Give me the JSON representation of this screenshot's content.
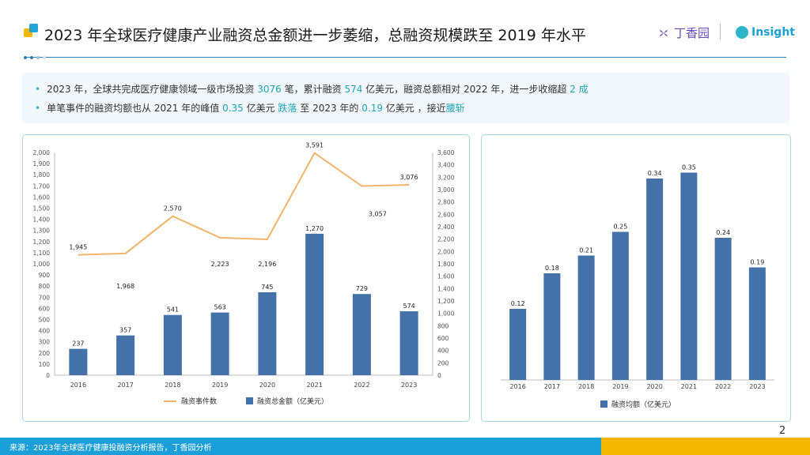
{
  "header": {
    "title": "2023 年全球医疗健康产业融资总金额进一步萎缩，总融资规模跌至 2019 年水平",
    "brand_dxy": "丁香园",
    "brand_insight": "Insight"
  },
  "summary": {
    "line1": [
      {
        "t": "2023 年，全球共完成医疗健康领域一级市场投资 ",
        "hl": false
      },
      {
        "t": "3076",
        "hl": true
      },
      {
        "t": " 笔，累计融资 ",
        "hl": false
      },
      {
        "t": "574",
        "hl": true
      },
      {
        "t": " 亿美元，融资总额相对 2022 年，进一步收缩超 ",
        "hl": false
      },
      {
        "t": "2 成",
        "hl": true
      }
    ],
    "line2": [
      {
        "t": "单笔事件的融资均额也从 2021 年的峰值 ",
        "hl": false
      },
      {
        "t": "0.35",
        "hl": true
      },
      {
        "t": " 亿美元 ",
        "hl": false
      },
      {
        "t": "跌落",
        "hl": true
      },
      {
        "t": " 至 2023 年的 ",
        "hl": false
      },
      {
        "t": "0.19",
        "hl": true
      },
      {
        "t": " 亿美元 ，接近",
        "hl": false
      },
      {
        "t": "腰斩",
        "hl": true
      }
    ]
  },
  "colors": {
    "bar": "#4472a8",
    "line": "#f2b46b",
    "accent": "#1fa7b8",
    "footer": "#1a9fd8",
    "footer_alt": "#f5b800"
  },
  "chart_data": [
    {
      "type": "bar",
      "categories": [
        "2016",
        "2017",
        "2018",
        "2019",
        "2020",
        "2021",
        "2022",
        "2023"
      ],
      "series": [
        {
          "name": "融资总金额（亿美元）",
          "type": "bar",
          "axis": "left",
          "values": [
            237,
            357,
            541,
            563,
            745,
            1270,
            729,
            574
          ],
          "labels": [
            "237",
            "357",
            "541",
            "563",
            "745",
            "1,270",
            "729",
            "574"
          ]
        },
        {
          "name": "融资事件数",
          "type": "line",
          "axis": "right",
          "values": [
            1945,
            1968,
            2570,
            2223,
            2196,
            3591,
            3057,
            3076
          ],
          "labels": [
            "1,945",
            "1,968",
            "2,570",
            "2,223",
            "2,196",
            "3,591",
            "3,057",
            "3,076"
          ]
        }
      ],
      "ylim": [
        0,
        2000
      ],
      "y_ticks": [
        "0",
        "100",
        "200",
        "300",
        "400",
        "500",
        "600",
        "700",
        "800",
        "900",
        "1,000",
        "1,100",
        "1,200",
        "1,300",
        "1,400",
        "1,500",
        "1,600",
        "1,700",
        "1,800",
        "1,900",
        "2,000"
      ],
      "y2lim": [
        0,
        3600
      ],
      "y2_ticks": [
        "0",
        "200",
        "400",
        "600",
        "800",
        "1,000",
        "1,200",
        "1,400",
        "1,600",
        "1,800",
        "2,000",
        "2,200",
        "2,400",
        "2,600",
        "2,800",
        "3,000",
        "3,200",
        "3,400",
        "3,600"
      ],
      "legend": "bottom",
      "grid": false
    },
    {
      "type": "bar",
      "categories": [
        "2016",
        "2017",
        "2018",
        "2019",
        "2020",
        "2021",
        "2022",
        "2023"
      ],
      "series": [
        {
          "name": "融资均额（亿美元）",
          "values": [
            0.12,
            0.18,
            0.21,
            0.25,
            0.34,
            0.35,
            0.24,
            0.19
          ],
          "labels": [
            "0.12",
            "0.18",
            "0.21",
            "0.25",
            "0.34",
            "0.35",
            "0.24",
            "0.19"
          ]
        }
      ],
      "ylim": [
        0,
        0.4
      ],
      "legend": "bottom",
      "grid": false
    }
  ],
  "footer": {
    "source": "来源：2023年全球医疗健康投融资分析报告，丁香园分析"
  },
  "page_number": "2"
}
